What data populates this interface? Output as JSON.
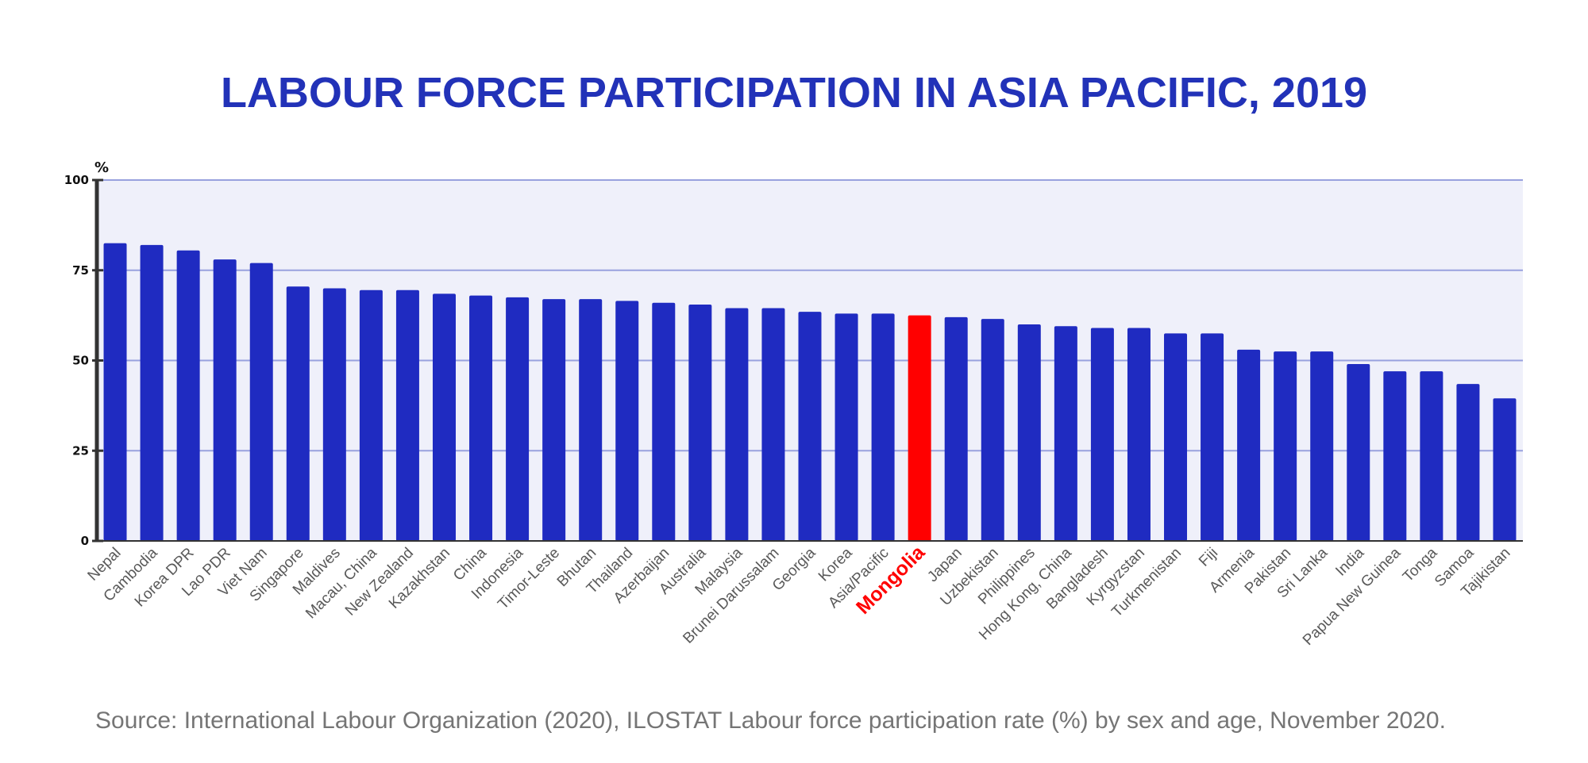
{
  "chart_data": {
    "type": "bar",
    "title": "LABOUR FORCE PARTICIPATION IN ASIA PACIFIC, 2019",
    "ylabel": "%",
    "xlabel": "",
    "ylim": [
      0,
      100
    ],
    "yticks": [
      0,
      25,
      50,
      75,
      100
    ],
    "grid": true,
    "highlight": "Mongolia",
    "colors": {
      "bar": "#1f2bc1",
      "highlight": "#ff0000",
      "plot_bg": "#eff0fa",
      "grid": "#98a1de",
      "axis": "#333333",
      "title": "#2232b8"
    },
    "categories": [
      "Nepal",
      "Cambodia",
      "Korea DPR",
      "Lao PDR",
      "Viet Nam",
      "Singapore",
      "Maldives",
      "Macau, China",
      "New Zealand",
      "Kazakhstan",
      "China",
      "Indonesia",
      "Timor-Leste",
      "Bhutan",
      "Thailand",
      "Azerbaijan",
      "Australia",
      "Malaysia",
      "Brunei Darussalam",
      "Georgia",
      "Korea",
      "Asia/Pacific",
      "Mongolia",
      "Japan",
      "Uzbekistan",
      "Philippines",
      "Hong Kong, China",
      "Bangladesh",
      "Kyrgyzstan",
      "Turkmenistan",
      "Fiji",
      "Armenia",
      "Pakistan",
      "Sri Lanka",
      "India",
      "Papua New Guinea",
      "Tonga",
      "Samoa",
      "Tajikistan"
    ],
    "values": [
      82.5,
      82.0,
      80.5,
      78.0,
      77.0,
      70.5,
      70.0,
      69.5,
      69.5,
      68.5,
      68.0,
      67.5,
      67.0,
      67.0,
      66.5,
      66.0,
      65.5,
      64.5,
      64.5,
      63.5,
      63.0,
      63.0,
      62.5,
      62.0,
      61.5,
      60.0,
      59.5,
      59.0,
      59.0,
      57.5,
      57.5,
      53.0,
      52.5,
      52.5,
      49.0,
      47.0,
      47.0,
      43.5,
      39.5
    ]
  },
  "source": "Source: International Labour Organization (2020), ILOSTAT Labour force participation rate (%) by sex and age, November 2020."
}
